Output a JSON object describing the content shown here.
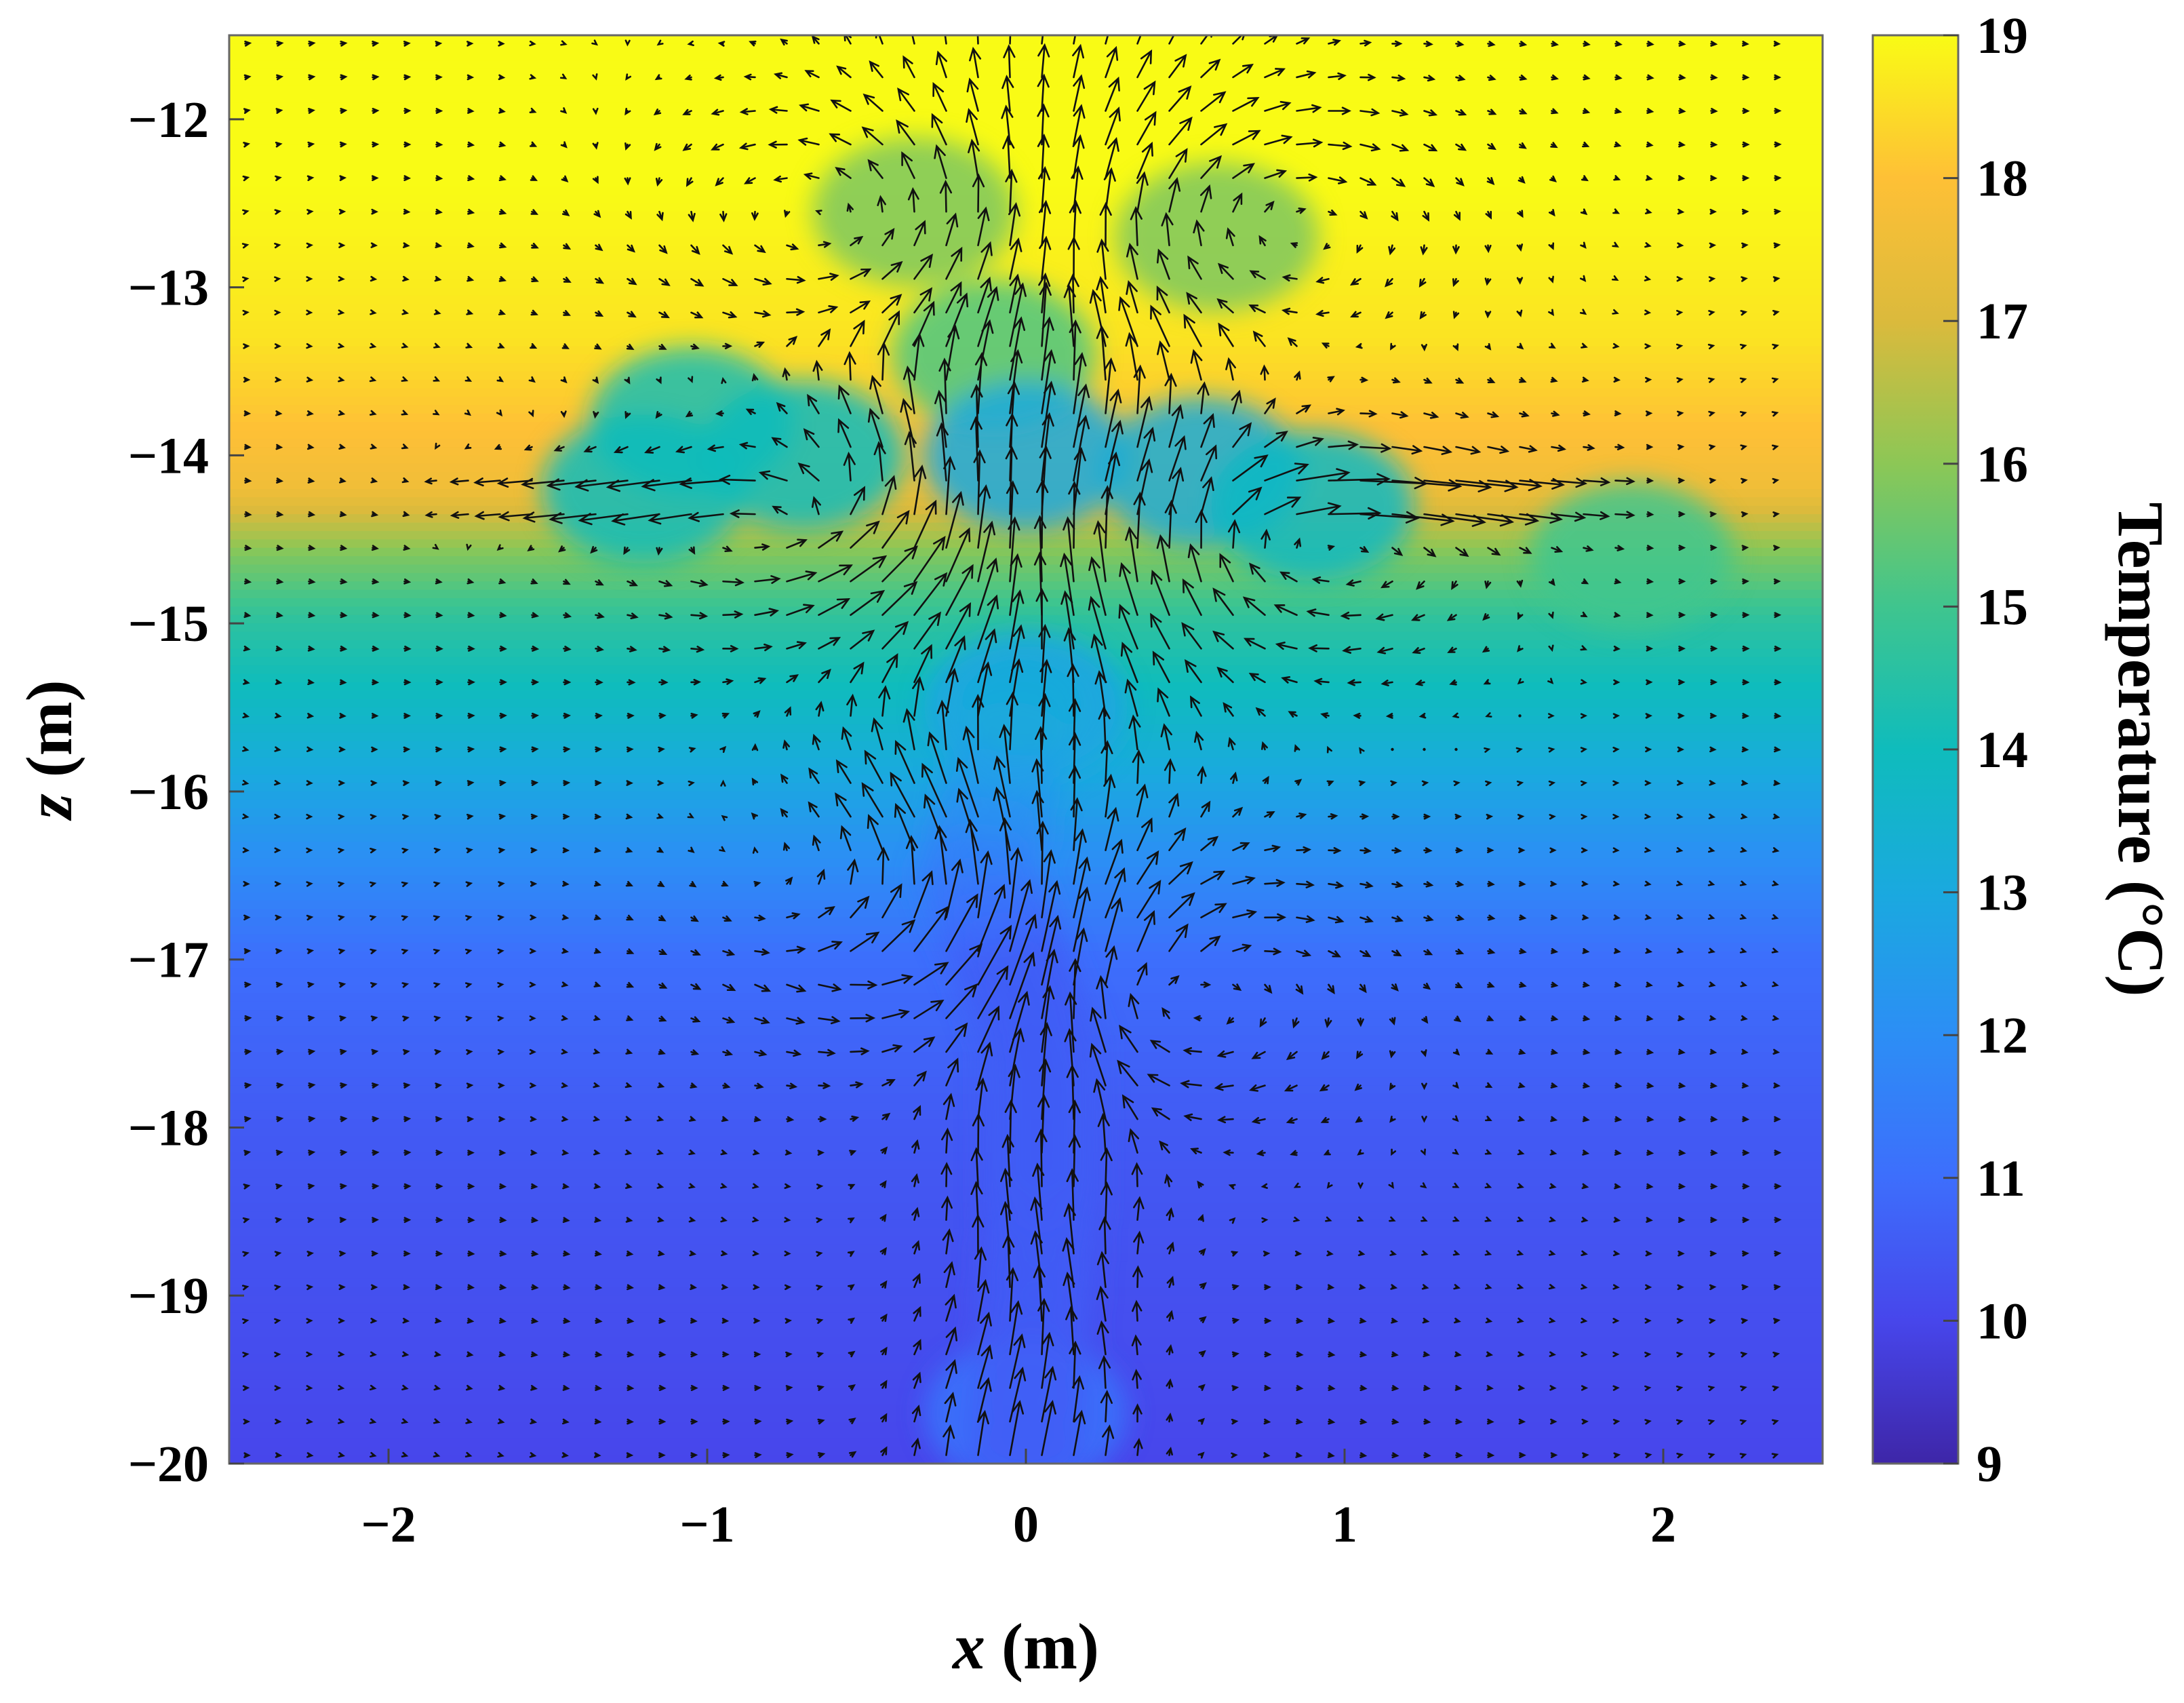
{
  "chart_data": {
    "type": "heatmap",
    "subtype": "temperature field with velocity vector overlay",
    "title": "",
    "xlabel_var": "x",
    "xlabel_unit": " (m)",
    "ylabel_var": "z",
    "ylabel_unit": " (m)",
    "xlim": [
      -2.5,
      2.5
    ],
    "ylim": [
      -20,
      -11.5
    ],
    "xticks": [
      -2,
      -1,
      0,
      1,
      2
    ],
    "xtick_labels": [
      "−2",
      "−1",
      "0",
      "1",
      "2"
    ],
    "yticks": [
      -12,
      -13,
      -14,
      -15,
      -16,
      -17,
      -18,
      -19,
      -20
    ],
    "ytick_labels": [
      "−12",
      "−13",
      "−14",
      "−15",
      "−16",
      "−17",
      "−18",
      "−19",
      "−20"
    ],
    "grid": false,
    "colorbar": {
      "label": "Temperature (°C)",
      "range": [
        9,
        19
      ],
      "ticks": [
        19,
        18,
        17,
        16,
        15,
        14,
        13,
        12,
        11,
        10,
        9
      ],
      "tick_labels": [
        "19",
        "18",
        "17",
        "16",
        "15",
        "14",
        "13",
        "12",
        "11",
        "10",
        "9"
      ],
      "placement": "right",
      "colormap_stops": [
        {
          "value": 9,
          "color": "#3e26a8"
        },
        {
          "value": 10,
          "color": "#4746eb"
        },
        {
          "value": 11,
          "color": "#3d6efc"
        },
        {
          "value": 12,
          "color": "#2c8ef5"
        },
        {
          "value": 13,
          "color": "#1aa9df"
        },
        {
          "value": 14,
          "color": "#0fbcbc"
        },
        {
          "value": 15,
          "color": "#3fc58e"
        },
        {
          "value": 16,
          "color": "#8cc756"
        },
        {
          "value": 17,
          "color": "#dbba3c"
        },
        {
          "value": 18,
          "color": "#fec036"
        },
        {
          "value": 19,
          "color": "#f9fb15"
        }
      ]
    },
    "temperature_profile": [
      {
        "z": -11.5,
        "t": 19
      },
      {
        "z": -12.4,
        "t": 19
      },
      {
        "z": -13.3,
        "t": 18.6
      },
      {
        "z": -14.2,
        "t": 17.6
      },
      {
        "z": -14.6,
        "t": 15.8
      },
      {
        "z": -15.0,
        "t": 14.6
      },
      {
        "z": -15.6,
        "t": 13.6
      },
      {
        "z": -16.3,
        "t": 12.2
      },
      {
        "z": -17.0,
        "t": 11.0
      },
      {
        "z": -18.0,
        "t": 10.5
      },
      {
        "z": -20.0,
        "t": 10.0
      }
    ],
    "plume_anomalies": [
      {
        "x": -0.35,
        "z": -12.55,
        "t": 15.8
      },
      {
        "x": 0.6,
        "z": -12.7,
        "t": 15.8
      },
      {
        "x": -0.1,
        "z": -13.4,
        "t": 15.2
      },
      {
        "x": -1.05,
        "z": -13.8,
        "t": 14.2
      },
      {
        "x": -1.2,
        "z": -14.2,
        "t": 14.0
      },
      {
        "x": -0.7,
        "z": -14.0,
        "t": 14.0
      },
      {
        "x": 0.0,
        "z": -14.0,
        "t": 13.0
      },
      {
        "x": 0.55,
        "z": -14.1,
        "t": 13.2
      },
      {
        "x": 0.9,
        "z": -14.3,
        "t": 13.8
      },
      {
        "x": 1.9,
        "z": -14.6,
        "t": 15.0
      },
      {
        "x": 0.0,
        "z": -15.5,
        "t": 12.8
      },
      {
        "x": 0.0,
        "z": -19.7,
        "t": 11.2
      }
    ],
    "vector_field": {
      "description": "black velocity arrows",
      "plume_axis": [
        {
          "z": -20.0,
          "x": 0.0
        },
        {
          "z": -18.5,
          "x": 0.05
        },
        {
          "z": -17.5,
          "x": 0.05
        },
        {
          "z": -16.5,
          "x": -0.15
        },
        {
          "z": -15.0,
          "x": 0.05
        },
        {
          "z": -13.5,
          "x": 0.0
        },
        {
          "z": -12.5,
          "x": 0.15
        }
      ],
      "vortices": [
        {
          "x": -0.6,
          "z": -14.3,
          "sense": "ccw"
        },
        {
          "x": 0.8,
          "z": -14.5,
          "sense": "cw"
        },
        {
          "x": -0.5,
          "z": -12.6,
          "sense": "ccw"
        },
        {
          "x": 0.7,
          "z": -12.6,
          "sense": "cw"
        },
        {
          "x": -0.3,
          "z": -16.7,
          "sense": "ccw"
        },
        {
          "x": 0.4,
          "z": -17.2,
          "sense": "cw"
        }
      ]
    }
  }
}
